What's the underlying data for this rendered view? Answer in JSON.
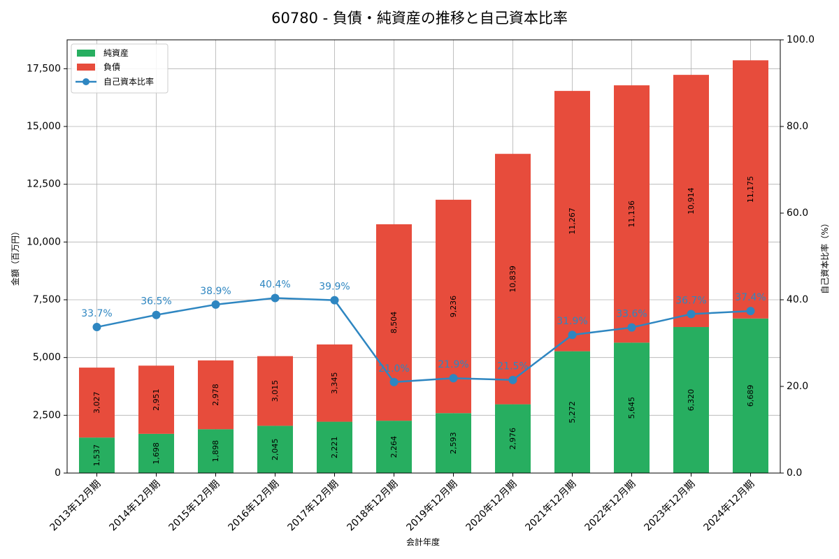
{
  "chart_data": {
    "type": "bar",
    "title": "60780 - 負債・純資産の推移と自己資本比率",
    "xlabel": "会計年度",
    "ylabel_left": "金額（百万円）",
    "ylabel_right": "自己資本比率（%）",
    "categories": [
      "2013年12月期",
      "2014年12月期",
      "2015年12月期",
      "2016年12月期",
      "2017年12月期",
      "2018年12月期",
      "2019年12月期",
      "2020年12月期",
      "2021年12月期",
      "2022年12月期",
      "2023年12月期",
      "2024年12月期"
    ],
    "series": [
      {
        "name": "純資産",
        "kind": "bar",
        "stack": "total",
        "axis": "left",
        "color": "#27ae60",
        "values": [
          1537,
          1698,
          1898,
          2045,
          2221,
          2264,
          2593,
          2976,
          5272,
          5645,
          6320,
          6689
        ],
        "labels": [
          "1,537",
          "1,698",
          "1,898",
          "2,045",
          "2,221",
          "2,264",
          "2,593",
          "2,976",
          "5,272",
          "5,645",
          "6,320",
          "6,689"
        ]
      },
      {
        "name": "負債",
        "kind": "bar",
        "stack": "total",
        "axis": "left",
        "color": "#e74c3c",
        "values": [
          3027,
          2951,
          2978,
          3015,
          3345,
          8504,
          9236,
          10839,
          11267,
          11136,
          10914,
          11175
        ],
        "labels": [
          "3,027",
          "2,951",
          "2,978",
          "3,015",
          "3,345",
          "8,504",
          "9,236",
          "10,839",
          "11,267",
          "11,136",
          "10,914",
          "11,175"
        ]
      },
      {
        "name": "自己資本比率",
        "kind": "line",
        "axis": "right",
        "color": "#2e86c1",
        "values": [
          33.7,
          36.5,
          38.9,
          40.4,
          39.9,
          21.0,
          21.9,
          21.5,
          31.9,
          33.6,
          36.7,
          37.4
        ],
        "labels": [
          "33.7%",
          "36.5%",
          "38.9%",
          "40.4%",
          "39.9%",
          "21.0%",
          "21.9%",
          "21.5%",
          "31.9%",
          "33.6%",
          "36.7%",
          "37.4%"
        ]
      }
    ],
    "ylim_left": [
      0,
      18750
    ],
    "yticks_left": [
      "0",
      "2,500",
      "5,000",
      "7,500",
      "10,000",
      "12,500",
      "15,000",
      "17,500"
    ],
    "ylim_right": [
      0,
      100
    ],
    "yticks_right": [
      "0.0",
      "20.0",
      "40.0",
      "60.0",
      "80.0",
      "100.0"
    ],
    "grid": true,
    "legend_position": "top-left"
  }
}
